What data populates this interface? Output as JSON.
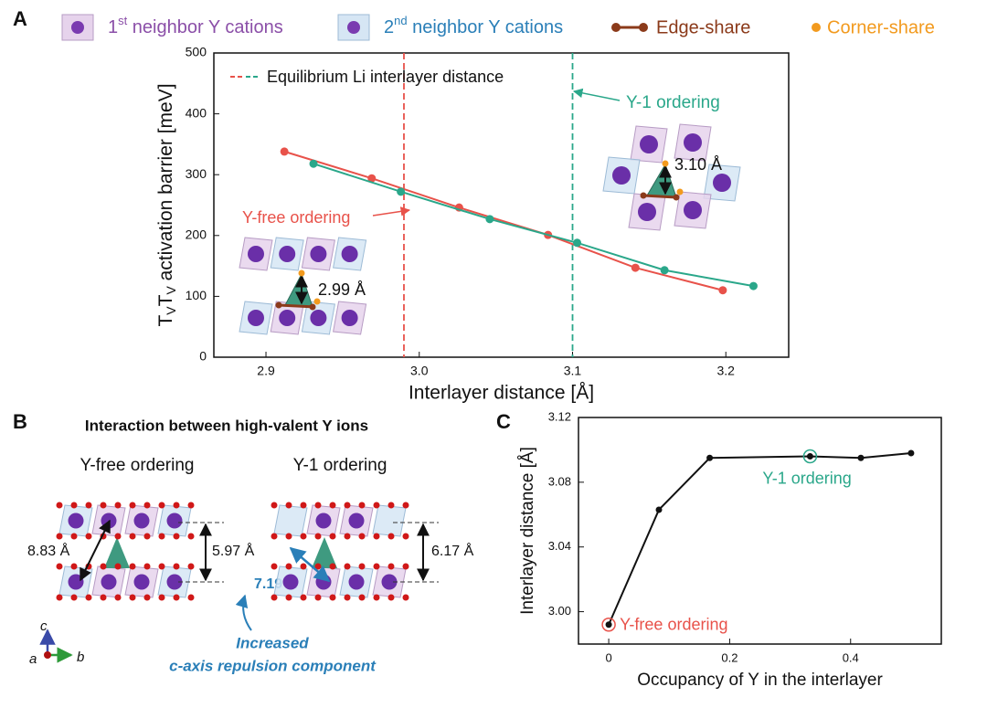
{
  "panel_labels": [
    "A",
    "B",
    "C"
  ],
  "legend": {
    "first": [
      "1",
      "st",
      " neighbor Y cations"
    ],
    "second": [
      "2",
      "nd",
      " neighbor Y cations"
    ],
    "edge": "Edge-share",
    "corner": "Corner-share"
  },
  "chart_data": [
    {
      "type": "line",
      "xlabel": "Interlayer distance [Å]",
      "ylabel": [
        "T",
        "V",
        "T",
        "V",
        " activation barrier [meV]"
      ],
      "xlim": [
        2.866,
        3.241
      ],
      "ylim": [
        0,
        500
      ],
      "xticks": [
        2.9,
        {
          "value": 3,
          "label": "3.0"
        },
        3.1,
        3.2
      ],
      "yticks": [
        0,
        100,
        200,
        300,
        400,
        500
      ],
      "series": [
        {
          "name": "Y-free ordering",
          "color": "#e8524a",
          "x": [
            2.912,
            2.969,
            3.026,
            3.084,
            3.141,
            3.198
          ],
          "values": [
            338,
            294,
            246,
            201,
            147,
            110
          ]
        },
        {
          "name": "Y-1 ordering",
          "color": "#2aa78a",
          "x": [
            2.931,
            2.988,
            3.046,
            3.103,
            3.16,
            3.218
          ],
          "values": [
            318,
            272,
            227,
            188,
            143,
            117
          ]
        }
      ],
      "vlines": {
        "label": "Equilibrium Li interlayer distance",
        "x": [
          2.99,
          3.1
        ],
        "colors": [
          "#e8524a",
          "#2aa78a"
        ]
      },
      "annotations": [
        "3.10 Å",
        "2.99 Å"
      ]
    },
    {
      "type": "line",
      "xlabel": "Occupancy of Y in the interlayer",
      "ylabel": "Interlayer distance [Å]",
      "xlim": [
        -0.05,
        0.55
      ],
      "ylim": [
        2.98,
        3.12
      ],
      "xticks": [
        0,
        0.2,
        0.4
      ],
      "yticks": [
        {
          "value": 3,
          "label": "3.00"
        },
        3.04,
        3.08,
        3.12
      ],
      "series": [
        {
          "name": "Interlayer distance",
          "color": "#111111",
          "x": [
            0,
            0.083,
            0.167,
            0.333,
            0.417,
            0.5
          ],
          "values": [
            2.992,
            3.063,
            3.095,
            3.096,
            3.095,
            3.098
          ]
        }
      ],
      "highlights": [
        {
          "label": "Y-free ordering",
          "index": 0,
          "color": "#e8524a"
        },
        {
          "label": "Y-1 ordering",
          "index": 3,
          "color": "#2aa78a"
        }
      ]
    }
  ],
  "panel_b": {
    "title": "Interaction between high-valent Y ions",
    "left_title": "Y-free ordering",
    "right_title": "Y-1 ordering",
    "left_diag": "8.83 Å",
    "left_height": "5.97 Å",
    "right_diag": "7.19 Å",
    "right_height": "6.17 Å",
    "note": [
      "Increased",
      "c-axis repulsion component"
    ],
    "axes": [
      "c",
      "a",
      "b"
    ]
  }
}
